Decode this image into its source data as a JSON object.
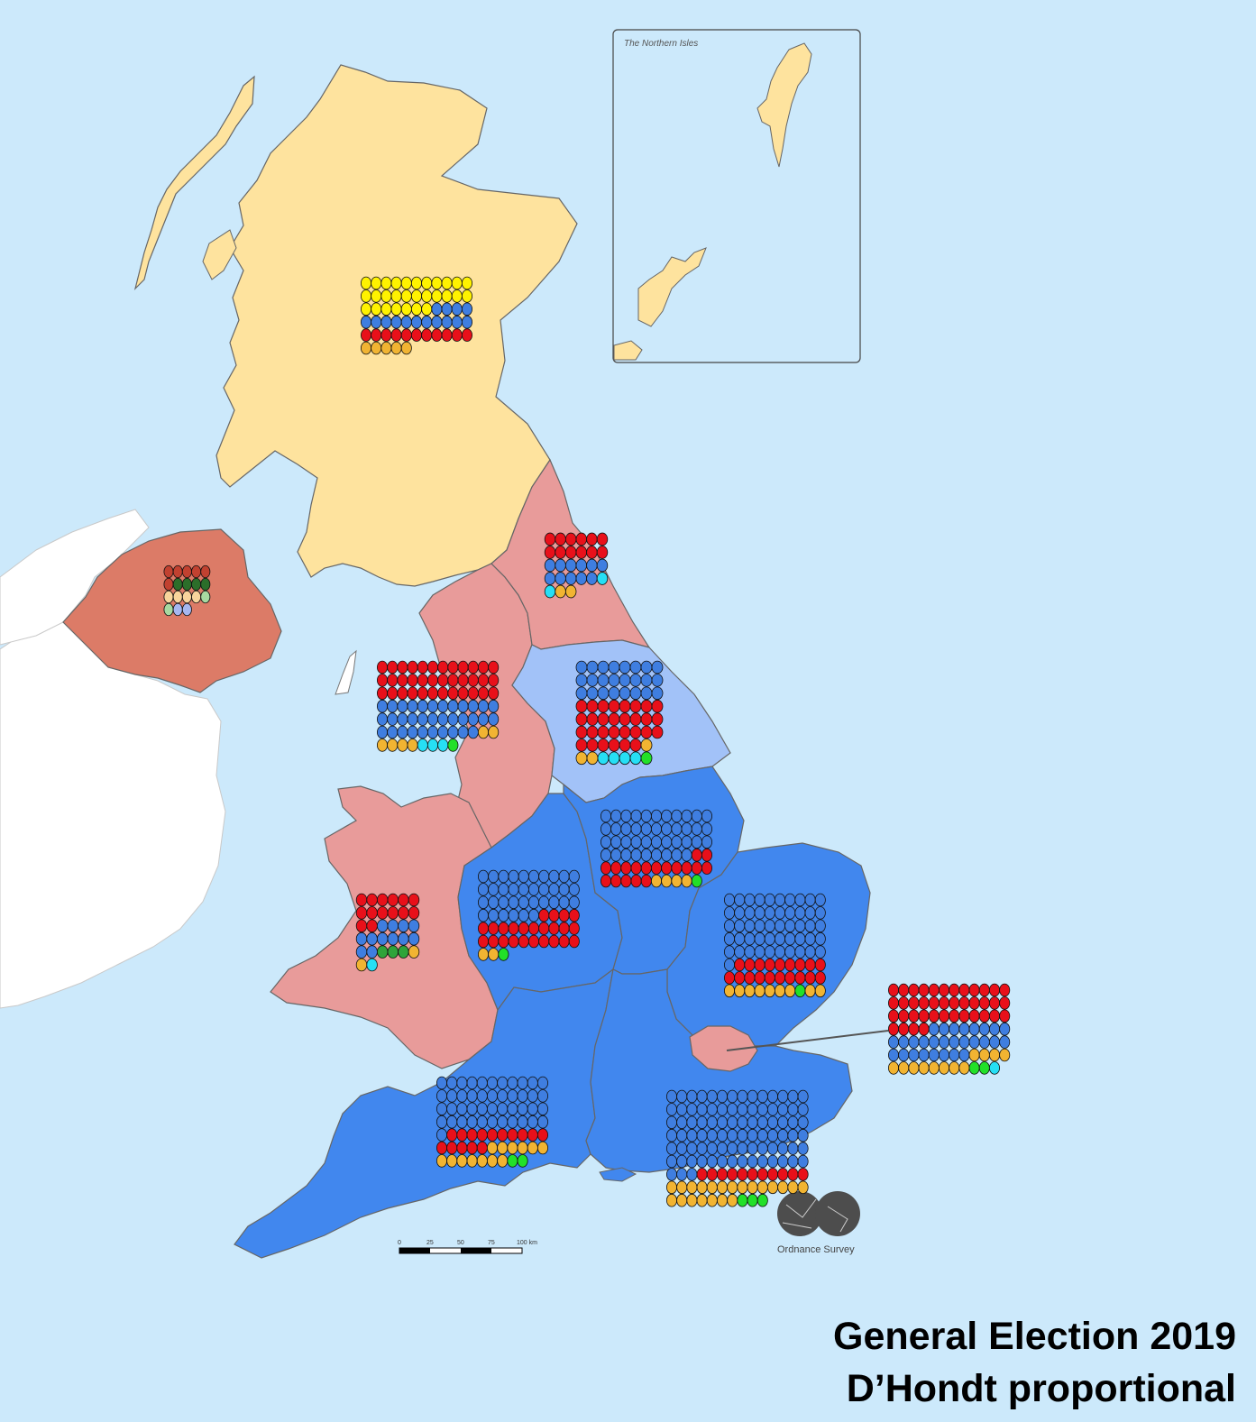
{
  "title_line1": "General Election 2019",
  "title_line2": "D’Hondt proportional",
  "inset_label": "The Northern Isles",
  "os_label": "Ordnance Survey",
  "scale_labels": [
    "0",
    "25",
    "50",
    "75",
    "100 km"
  ],
  "colors": {
    "sea": "#cce9fb",
    "ireland": "#ffffff",
    "scotland": "#fee39e",
    "labour_region": "#e89b9a",
    "conservative_region": "#4187ee",
    "yorkshire_region": "#a2c2f8",
    "northern_ireland": "#dc7b67",
    "party": {
      "snp": "#fff200",
      "con": "#3f7ee0",
      "lab": "#e8101a",
      "ld": "#f1b432",
      "brexit": "#26dff5",
      "green": "#22e029",
      "plaid": "#2fa43a",
      "dup": "#c14130",
      "sf": "#2c6e2a",
      "alliance": "#f8d49c",
      "sdlp": "#a7d9a1",
      "uup": "#a6b7f0"
    }
  },
  "regions": [
    {
      "name": "Scotland",
      "rows": [
        [
          "snp",
          11
        ],
        [
          "snp",
          11
        ],
        [
          "snp",
          7,
          "con",
          4
        ],
        [
          "con",
          11
        ],
        [
          "lab",
          11
        ],
        [
          "ld",
          5
        ]
      ]
    },
    {
      "name": "North East",
      "rows": [
        [
          "lab",
          6
        ],
        [
          "lab",
          6
        ],
        [
          "con",
          6
        ],
        [
          "con",
          5,
          "brexit",
          1
        ],
        [
          "brexit",
          1,
          "ld",
          2
        ]
      ]
    },
    {
      "name": "Northern Ireland",
      "rows": [
        [
          "dup",
          5
        ],
        [
          "dup",
          1,
          "sf",
          4
        ],
        [
          "alliance",
          4,
          "sdlp",
          1
        ],
        [
          "sdlp",
          1,
          "uup",
          2
        ]
      ]
    },
    {
      "name": "North West",
      "rows": [
        [
          "lab",
          12
        ],
        [
          "lab",
          12
        ],
        [
          "lab",
          12
        ],
        [
          "con",
          12
        ],
        [
          "con",
          12
        ],
        [
          "con",
          10,
          "ld",
          2
        ],
        [
          "ld",
          4,
          "brexit",
          3,
          "green",
          1
        ]
      ]
    },
    {
      "name": "Yorkshire and the Humber",
      "rows": [
        [
          "con",
          8
        ],
        [
          "con",
          8
        ],
        [
          "con",
          8
        ],
        [
          "lab",
          8
        ],
        [
          "lab",
          8
        ],
        [
          "lab",
          8
        ],
        [
          "lab",
          6,
          "ld",
          1
        ],
        [
          "ld",
          2,
          "brexit",
          4,
          "green",
          1
        ]
      ]
    },
    {
      "name": "East Midlands",
      "rows": [
        [
          "con",
          11
        ],
        [
          "con",
          11
        ],
        [
          "con",
          11
        ],
        [
          "con",
          9,
          "lab",
          2
        ],
        [
          "lab",
          11
        ],
        [
          "lab",
          5,
          "ld",
          4,
          "green",
          1
        ]
      ]
    },
    {
      "name": "West Midlands",
      "rows": [
        [
          "con",
          10
        ],
        [
          "con",
          10
        ],
        [
          "con",
          10
        ],
        [
          "con",
          6,
          "lab",
          4
        ],
        [
          "lab",
          10
        ],
        [
          "lab",
          10
        ],
        [
          "ld",
          2,
          "green",
          1
        ]
      ]
    },
    {
      "name": "Wales",
      "rows": [
        [
          "lab",
          6
        ],
        [
          "lab",
          6
        ],
        [
          "lab",
          2,
          "con",
          4
        ],
        [
          "con",
          6
        ],
        [
          "con",
          2,
          "plaid",
          3,
          "ld",
          1
        ],
        [
          "ld",
          1,
          "brexit",
          1
        ]
      ]
    },
    {
      "name": "East of England",
      "rows": [
        [
          "con",
          10
        ],
        [
          "con",
          10
        ],
        [
          "con",
          10
        ],
        [
          "con",
          10
        ],
        [
          "con",
          10
        ],
        [
          "con",
          1,
          "lab",
          9
        ],
        [
          "lab",
          10
        ],
        [
          "ld",
          7,
          "green",
          1,
          "ld",
          2
        ]
      ]
    },
    {
      "name": "London",
      "rows": [
        [
          "lab",
          12
        ],
        [
          "lab",
          12
        ],
        [
          "lab",
          12
        ],
        [
          "lab",
          4,
          "con",
          8
        ],
        [
          "con",
          12
        ],
        [
          "con",
          8,
          "ld",
          4
        ],
        [
          "ld",
          8,
          "green",
          2,
          "brexit",
          1
        ]
      ]
    },
    {
      "name": "South West",
      "rows": [
        [
          "con",
          11
        ],
        [
          "con",
          11
        ],
        [
          "con",
          11
        ],
        [
          "con",
          11
        ],
        [
          "con",
          1,
          "lab",
          10
        ],
        [
          "lab",
          5,
          "ld",
          6
        ],
        [
          "ld",
          7,
          "green",
          2
        ]
      ]
    },
    {
      "name": "South East",
      "rows": [
        [
          "con",
          14
        ],
        [
          "con",
          14
        ],
        [
          "con",
          14
        ],
        [
          "con",
          14
        ],
        [
          "con",
          14
        ],
        [
          "con",
          14
        ],
        [
          "con",
          3,
          "lab",
          11
        ],
        [
          "ld",
          14
        ],
        [
          "ld",
          7,
          "green",
          3
        ]
      ]
    }
  ]
}
